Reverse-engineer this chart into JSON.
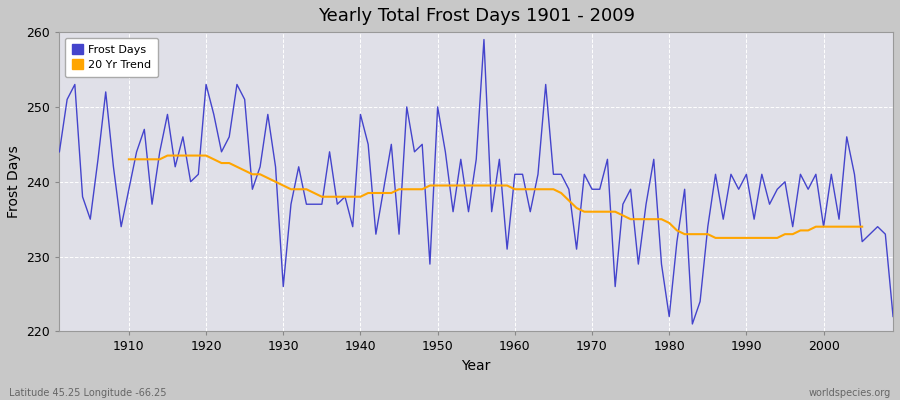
{
  "title": "Yearly Total Frost Days 1901 - 2009",
  "xlabel": "Year",
  "ylabel": "Frost Days",
  "xlim": [
    1901,
    2009
  ],
  "ylim": [
    220,
    260
  ],
  "yticks": [
    220,
    230,
    240,
    250,
    260
  ],
  "xticks": [
    1910,
    1920,
    1930,
    1940,
    1950,
    1960,
    1970,
    1980,
    1990,
    2000
  ],
  "frost_line_color": "#4444cc",
  "trend_line_color": "#FFA500",
  "fig_bg_color": "#c8c8c8",
  "plot_bg_color": "#e0e0e8",
  "grid_color": "#ffffff",
  "subtitle_left": "Latitude 45.25 Longitude -66.25",
  "subtitle_right": "worldspecies.org",
  "legend_labels": [
    "Frost Days",
    "20 Yr Trend"
  ],
  "years": [
    1901,
    1902,
    1903,
    1904,
    1905,
    1906,
    1907,
    1908,
    1909,
    1910,
    1911,
    1912,
    1913,
    1914,
    1915,
    1916,
    1917,
    1918,
    1919,
    1920,
    1921,
    1922,
    1923,
    1924,
    1925,
    1926,
    1927,
    1928,
    1929,
    1930,
    1931,
    1932,
    1933,
    1934,
    1935,
    1936,
    1937,
    1938,
    1939,
    1940,
    1941,
    1942,
    1943,
    1944,
    1945,
    1946,
    1947,
    1948,
    1949,
    1950,
    1951,
    1952,
    1953,
    1954,
    1955,
    1956,
    1957,
    1958,
    1959,
    1960,
    1961,
    1962,
    1963,
    1964,
    1965,
    1966,
    1967,
    1968,
    1969,
    1970,
    1971,
    1972,
    1973,
    1974,
    1975,
    1976,
    1977,
    1978,
    1979,
    1980,
    1981,
    1982,
    1983,
    1984,
    1985,
    1986,
    1987,
    1988,
    1989,
    1990,
    1991,
    1992,
    1993,
    1994,
    1995,
    1996,
    1997,
    1998,
    1999,
    2000,
    2001,
    2002,
    2003,
    2004,
    2005,
    2006,
    2007,
    2008,
    2009
  ],
  "frost_days": [
    244,
    251,
    253,
    238,
    235,
    243,
    252,
    242,
    234,
    239,
    244,
    247,
    237,
    244,
    249,
    242,
    246,
    240,
    241,
    253,
    249,
    244,
    246,
    253,
    251,
    239,
    242,
    249,
    242,
    226,
    237,
    242,
    237,
    237,
    237,
    244,
    237,
    238,
    234,
    249,
    245,
    233,
    239,
    245,
    233,
    250,
    244,
    245,
    229,
    250,
    244,
    236,
    243,
    236,
    243,
    259,
    236,
    243,
    231,
    241,
    241,
    236,
    241,
    253,
    241,
    241,
    239,
    231,
    241,
    239,
    239,
    243,
    226,
    237,
    239,
    229,
    237,
    243,
    229,
    222,
    232,
    239,
    221,
    224,
    234,
    241,
    235,
    241,
    239,
    241,
    235,
    241,
    237,
    239,
    240,
    234,
    241,
    239,
    241,
    234,
    241,
    235,
    246,
    241,
    232,
    233,
    234,
    233,
    222
  ],
  "trend_years": [
    1910,
    1911,
    1912,
    1913,
    1914,
    1915,
    1916,
    1917,
    1918,
    1919,
    1920,
    1921,
    1922,
    1923,
    1924,
    1925,
    1926,
    1927,
    1928,
    1929,
    1930,
    1931,
    1932,
    1933,
    1934,
    1935,
    1936,
    1937,
    1938,
    1939,
    1940,
    1941,
    1942,
    1943,
    1944,
    1945,
    1946,
    1947,
    1948,
    1949,
    1950,
    1951,
    1952,
    1953,
    1954,
    1955,
    1956,
    1957,
    1958,
    1959,
    1960,
    1961,
    1962,
    1963,
    1964,
    1965,
    1966,
    1967,
    1968,
    1969,
    1970,
    1971,
    1972,
    1973,
    1974,
    1975,
    1976,
    1977,
    1978,
    1979,
    1980,
    1981,
    1982,
    1983,
    1984,
    1985,
    1986,
    1987,
    1988,
    1989,
    1990,
    1991,
    1992,
    1993,
    1994,
    1995,
    1996,
    1997,
    1998,
    1999,
    2000,
    2001,
    2002,
    2003,
    2004,
    2005
  ],
  "trend_values": [
    243.0,
    243.0,
    243.0,
    243.0,
    243.0,
    243.5,
    243.5,
    243.5,
    243.5,
    243.5,
    243.5,
    243.0,
    242.5,
    242.5,
    242.0,
    241.5,
    241.0,
    241.0,
    240.5,
    240.0,
    239.5,
    239.0,
    239.0,
    239.0,
    238.5,
    238.0,
    238.0,
    238.0,
    238.0,
    238.0,
    238.0,
    238.5,
    238.5,
    238.5,
    238.5,
    239.0,
    239.0,
    239.0,
    239.0,
    239.5,
    239.5,
    239.5,
    239.5,
    239.5,
    239.5,
    239.5,
    239.5,
    239.5,
    239.5,
    239.5,
    239.0,
    239.0,
    239.0,
    239.0,
    239.0,
    239.0,
    238.5,
    237.5,
    236.5,
    236.0,
    236.0,
    236.0,
    236.0,
    236.0,
    235.5,
    235.0,
    235.0,
    235.0,
    235.0,
    235.0,
    234.5,
    233.5,
    233.0,
    233.0,
    233.0,
    233.0,
    232.5,
    232.5,
    232.5,
    232.5,
    232.5,
    232.5,
    232.5,
    232.5,
    232.5,
    233.0,
    233.0,
    233.5,
    233.5,
    234.0,
    234.0,
    234.0,
    234.0,
    234.0,
    234.0,
    234.0
  ]
}
